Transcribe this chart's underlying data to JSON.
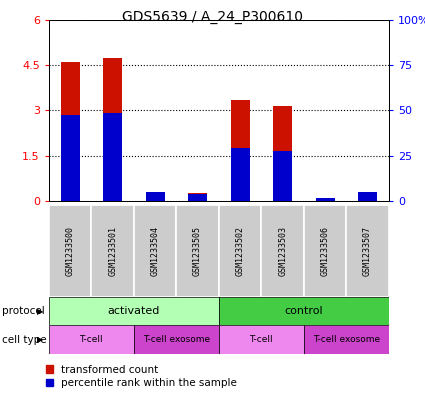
{
  "title": "GDS5639 / A_24_P300610",
  "samples": [
    "GSM1233500",
    "GSM1233501",
    "GSM1233504",
    "GSM1233505",
    "GSM1233502",
    "GSM1233503",
    "GSM1233506",
    "GSM1233507"
  ],
  "transformed_count": [
    4.6,
    4.75,
    0.3,
    0.25,
    3.35,
    3.15,
    0.05,
    0.3
  ],
  "percentile_rank_scaled": [
    2.85,
    2.9,
    0.28,
    0.22,
    1.75,
    1.65,
    0.1,
    0.28
  ],
  "ylim_left": [
    0,
    6
  ],
  "ylim_right": [
    0,
    100
  ],
  "yticks_left": [
    0,
    1.5,
    3.0,
    4.5,
    6.0
  ],
  "ytick_labels_left": [
    "0",
    "1.5",
    "3",
    "4.5",
    "6"
  ],
  "yticks_right": [
    0,
    25,
    50,
    75,
    100
  ],
  "ytick_labels_right": [
    "0",
    "25",
    "50",
    "75",
    "100%"
  ],
  "bar_color_red": "#cc1100",
  "bar_color_blue": "#0000cc",
  "bar_width": 0.45,
  "protocol_labels": [
    "activated",
    "control"
  ],
  "protocol_color_activated": "#b3ffb3",
  "protocol_color_control": "#44cc44",
  "cell_type_labels": [
    "T-cell",
    "T-cell exosome",
    "T-cell",
    "T-cell exosome"
  ],
  "cell_type_color_tcell": "#ee88ee",
  "cell_type_color_exosome": "#cc44cc",
  "sample_bg_color": "#cccccc",
  "legend_red_label": "transformed count",
  "legend_blue_label": "percentile rank within the sample",
  "fig_width": 4.25,
  "fig_height": 3.93,
  "fig_dpi": 100
}
